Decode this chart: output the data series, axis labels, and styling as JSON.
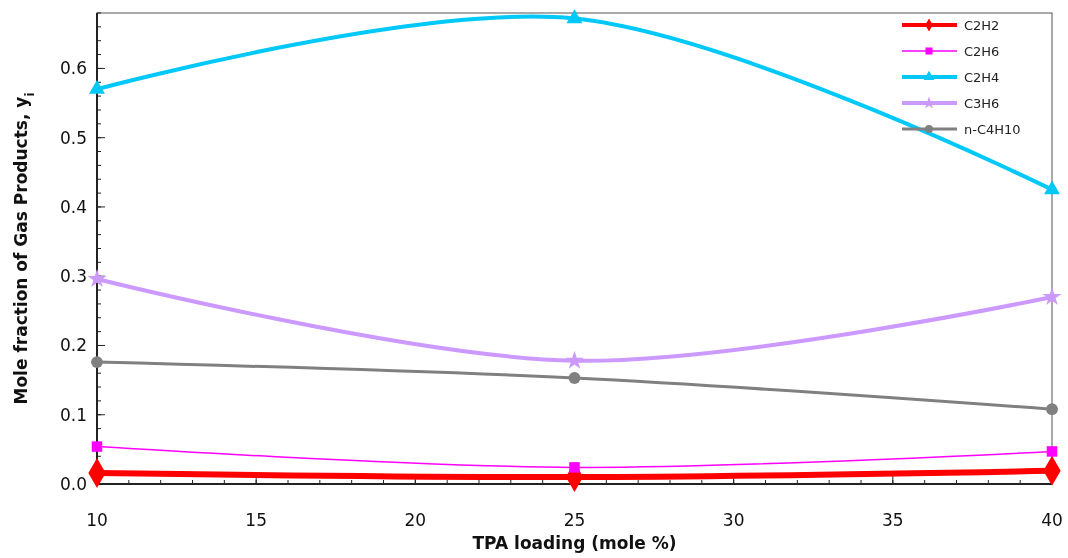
{
  "chart_data": {
    "type": "line",
    "xlabel": "TPA loading (mole %)",
    "ylabel": "Mole fraction of Gas Products, y$_{i}$",
    "x": [
      10,
      25,
      40
    ],
    "xlim": [
      10,
      40
    ],
    "xticks": [
      10,
      15,
      20,
      25,
      30,
      35,
      40
    ],
    "ylim": [
      0,
      0.68
    ],
    "yticks": [
      {
        "value": 0,
        "label": "0.0"
      },
      0.1,
      0.2,
      0.3,
      0.4,
      0.5,
      0.6
    ],
    "grid": false,
    "legend": "top right",
    "line_style": "solid",
    "series": [
      {
        "name": "C2H2",
        "color": "#ff0000",
        "marker": "diamond",
        "values": [
          0.016,
          0.01,
          0.019
        ]
      },
      {
        "name": "C2H6",
        "color": "#ff00ff",
        "marker": "square",
        "values": [
          0.054,
          0.024,
          0.047
        ]
      },
      {
        "name": "C2H4",
        "color": "#00c8f8",
        "marker": "triangle",
        "values": [
          0.57,
          0.672,
          0.425
        ]
      },
      {
        "name": "C3H6",
        "color": "#cc99ff",
        "marker": "star",
        "values": [
          0.296,
          0.178,
          0.27
        ]
      },
      {
        "name": "n-C4H10",
        "color": "#808080",
        "marker": "circle",
        "values": [
          0.176,
          0.153,
          0.108
        ]
      }
    ]
  }
}
